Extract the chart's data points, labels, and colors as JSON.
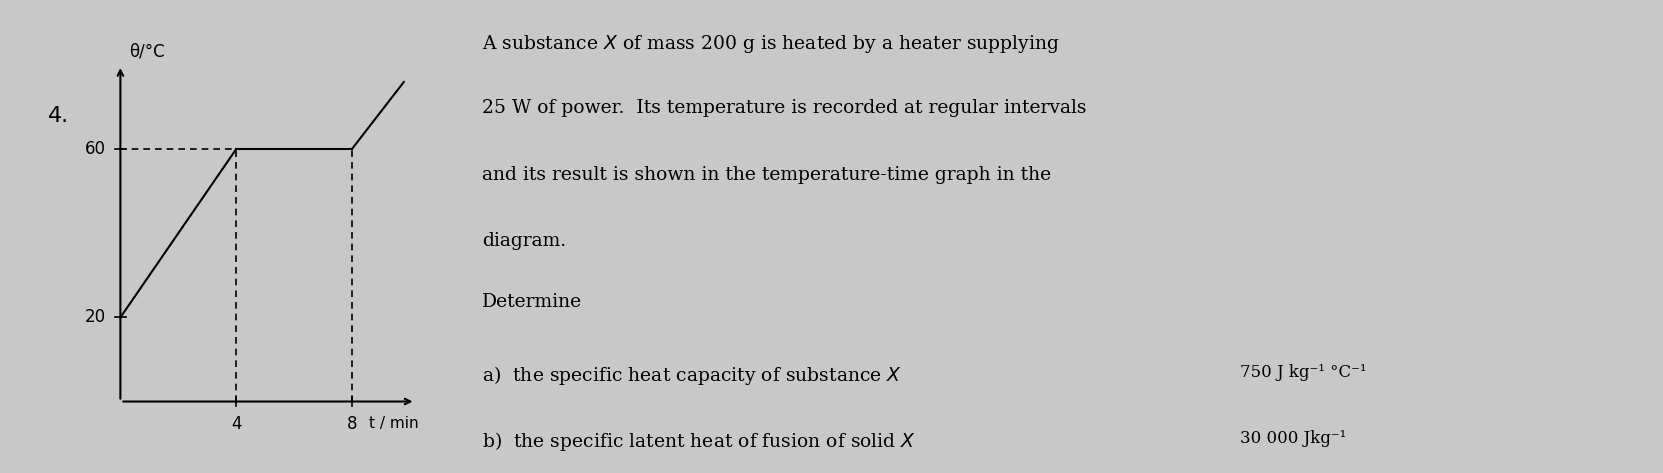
{
  "background_color": "#c8c8c8",
  "question_number": "4.",
  "ylabel": "θ/°C",
  "xlabel": "t / min",
  "yticks": [
    20,
    60
  ],
  "xticks": [
    4,
    8
  ],
  "xmin": 0,
  "xmax": 10.5,
  "ymin": -8,
  "ymax": 82,
  "graph_segments": [
    {
      "x": [
        0,
        4
      ],
      "y": [
        20,
        60
      ]
    },
    {
      "x": [
        4,
        8
      ],
      "y": [
        60,
        60
      ]
    },
    {
      "x": [
        8,
        9.8
      ],
      "y": [
        60,
        76
      ]
    }
  ],
  "dashed_lines": [
    {
      "x": [
        0,
        4
      ],
      "y": [
        60,
        60
      ]
    },
    {
      "x": [
        4,
        4
      ],
      "y": [
        0,
        60
      ]
    },
    {
      "x": [
        8,
        8
      ],
      "y": [
        0,
        60
      ]
    }
  ],
  "text_lines": [
    "A substance $X$ of mass 200 g is heated by a heater supplying",
    "25 W of power.  Its temperature is recorded at regular intervals",
    "and its result is shown in the temperature-time graph in the",
    "diagram.",
    "Determine",
    "a)  the specific heat capacity of substance $X$",
    "b)  the specific latent heat of fusion of solid $X$"
  ],
  "answer_a": "750 J kg⁻¹ °C⁻¹",
  "answer_b": "30 000 Jkg⁻¹",
  "line_color": "#000000",
  "dashed_color": "#000000",
  "text_color": "#000000",
  "fontsize_text": 13.5,
  "fontsize_labels": 12,
  "fontsize_question": 16,
  "fontsize_answer": 12
}
